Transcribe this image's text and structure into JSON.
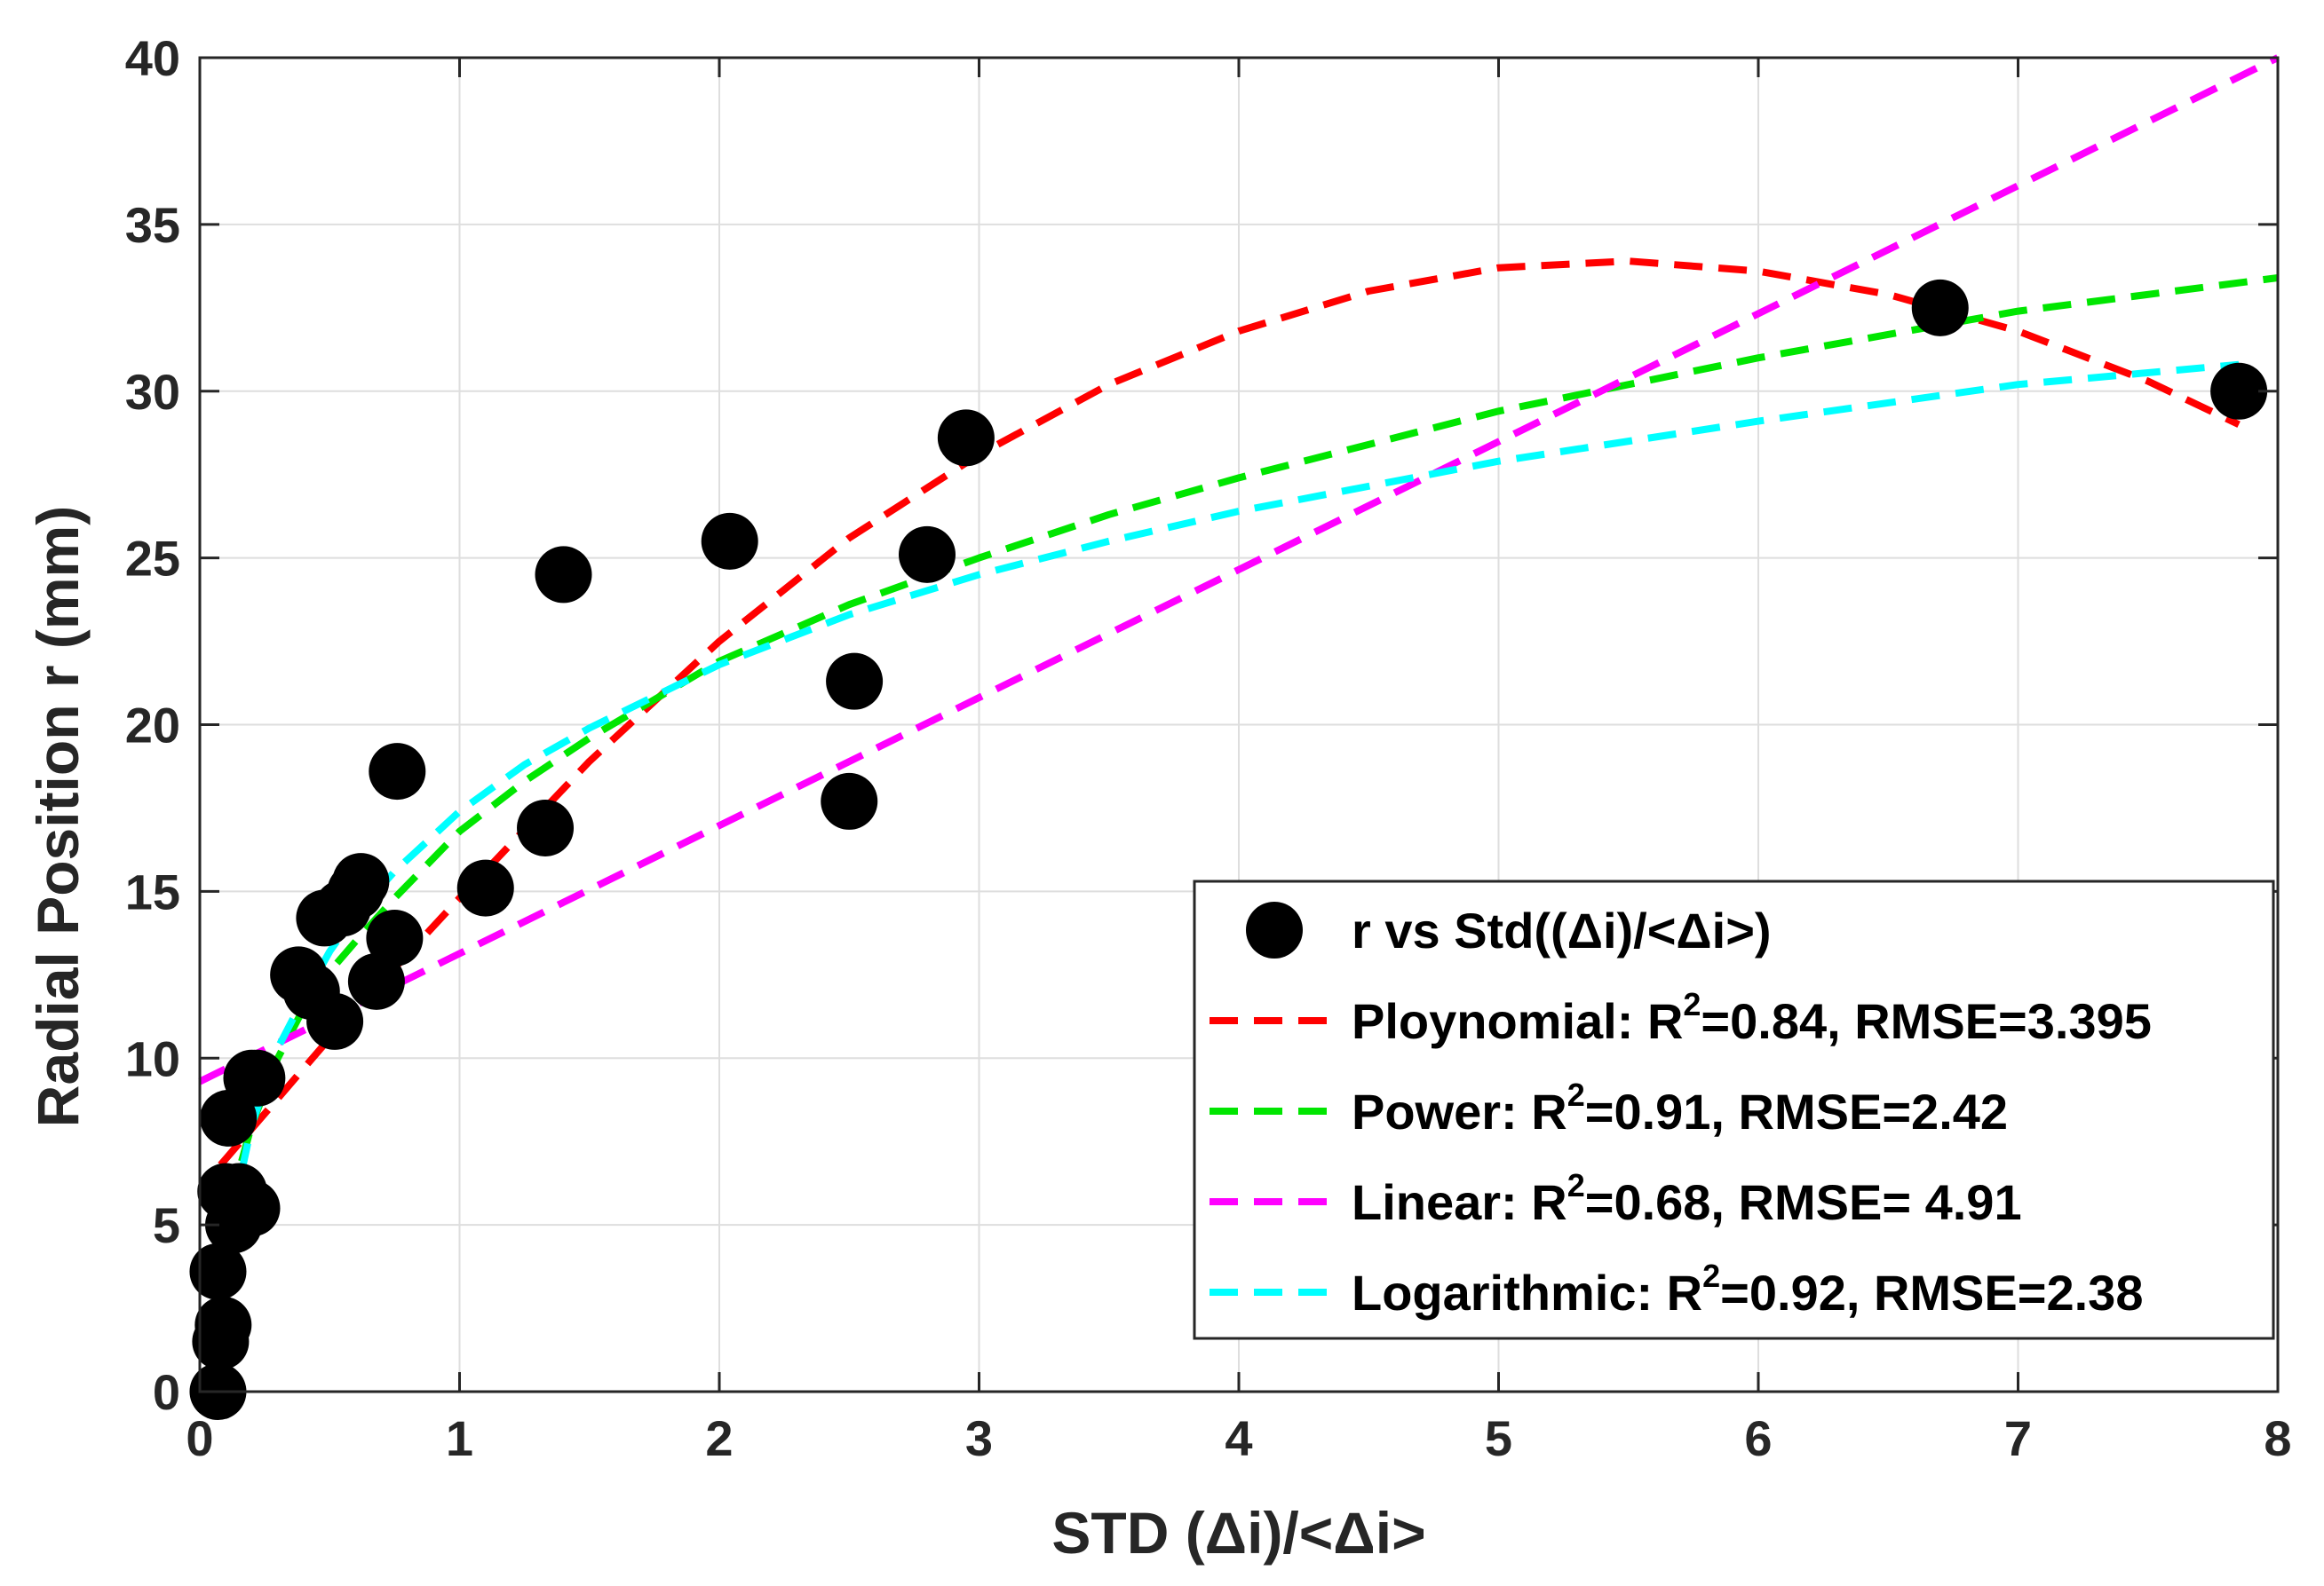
{
  "chart_data": {
    "type": "scatter",
    "xlabel": "STD (Δi)/<Δi>",
    "ylabel": "Radial Position r (mm)",
    "xlim": [
      0,
      8
    ],
    "ylim": [
      0,
      40
    ],
    "xticks": [
      0,
      1,
      2,
      3,
      4,
      5,
      6,
      7,
      8
    ],
    "yticks": [
      0,
      5,
      10,
      15,
      20,
      25,
      30,
      35,
      40
    ],
    "xtick_labels": [
      "0",
      "1",
      "2",
      "3",
      "4",
      "5",
      "6",
      "7",
      "8"
    ],
    "ytick_labels": [
      "0",
      "5",
      "10",
      "15",
      "20",
      "25",
      "30",
      "35",
      "40"
    ],
    "grid": true,
    "legend_position": "bottom-right",
    "points": {
      "name": "r vs Std((Δi)/<Δi>)",
      "color": "#000000",
      "x": [
        0.07,
        0.08,
        0.09,
        0.07,
        0.1,
        0.11,
        0.13,
        0.2,
        0.15,
        0.2,
        0.22,
        0.38,
        0.43,
        0.48,
        0.52,
        0.55,
        0.6,
        0.62,
        0.68,
        0.75,
        0.76,
        1.1,
        1.33,
        1.4,
        2.04,
        2.5,
        2.52,
        2.8,
        2.95,
        6.7,
        7.85
      ],
      "y": [
        0.0,
        1.5,
        2.0,
        3.6,
        6.0,
        8.2,
        5.0,
        5.5,
        6.0,
        9.4,
        9.4,
        12.5,
        12.0,
        14.2,
        11.1,
        14.5,
        15.0,
        15.3,
        12.3,
        13.6,
        18.6,
        15.1,
        16.9,
        24.5,
        25.5,
        17.7,
        21.3,
        25.1,
        28.6,
        32.5,
        30.0
      ]
    },
    "fits": [
      {
        "name": "Polynomial",
        "legend_label": "Ploynomial: R",
        "r2_text": "=0.84, RMSE=3.395",
        "color": "#ff0000",
        "x": [
          0.08,
          0.5,
          1.0,
          1.5,
          2.0,
          2.5,
          3.0,
          3.5,
          4.0,
          4.5,
          5.0,
          5.5,
          6.0,
          6.5,
          7.0,
          7.5,
          7.85
        ],
        "y": [
          6.8,
          10.6,
          14.8,
          18.9,
          22.5,
          25.6,
          28.1,
          30.2,
          31.8,
          33.0,
          33.7,
          33.9,
          33.6,
          32.9,
          31.8,
          30.3,
          29.0
        ]
      },
      {
        "name": "Power",
        "legend_label": "Power: R",
        "r2_text": "=0.91, RMSE=2.42",
        "color": "#00e600",
        "x": [
          0.07,
          0.1,
          0.15,
          0.2,
          0.3,
          0.4,
          0.5,
          0.6,
          0.75,
          1.0,
          1.25,
          1.5,
          2.0,
          2.5,
          3.0,
          3.5,
          4.0,
          5.0,
          6.0,
          7.0,
          8.0
        ],
        "y": [
          0.3,
          4.0,
          6.6,
          8.0,
          10.0,
          11.5,
          12.6,
          13.5,
          14.8,
          16.8,
          18.3,
          19.6,
          21.9,
          23.6,
          25.0,
          26.3,
          27.4,
          29.4,
          31.0,
          32.4,
          33.4
        ]
      },
      {
        "name": "Linear",
        "legend_label": "Linear: R",
        "r2_text": "=0.68, RMSE= 4.91",
        "color": "#ff00ff",
        "x": [
          0,
          8
        ],
        "y": [
          9.3,
          40.0
        ]
      },
      {
        "name": "Logarithmic",
        "legend_label": "Logarithmic: R",
        "r2_text": "=0.92, RMSE=2.38",
        "color": "#00ffff",
        "x": [
          0.07,
          0.1,
          0.15,
          0.2,
          0.3,
          0.4,
          0.5,
          0.6,
          0.75,
          1.0,
          1.25,
          1.5,
          2.0,
          2.5,
          3.0,
          3.5,
          4.0,
          5.0,
          6.0,
          7.0,
          7.85
        ],
        "y": [
          0.0,
          3.0,
          6.2,
          8.0,
          10.3,
          11.8,
          13.2,
          14.3,
          15.6,
          17.4,
          18.8,
          19.9,
          21.8,
          23.3,
          24.5,
          25.5,
          26.4,
          27.9,
          29.1,
          30.2,
          30.8
        ]
      }
    ],
    "superscript": "2"
  }
}
